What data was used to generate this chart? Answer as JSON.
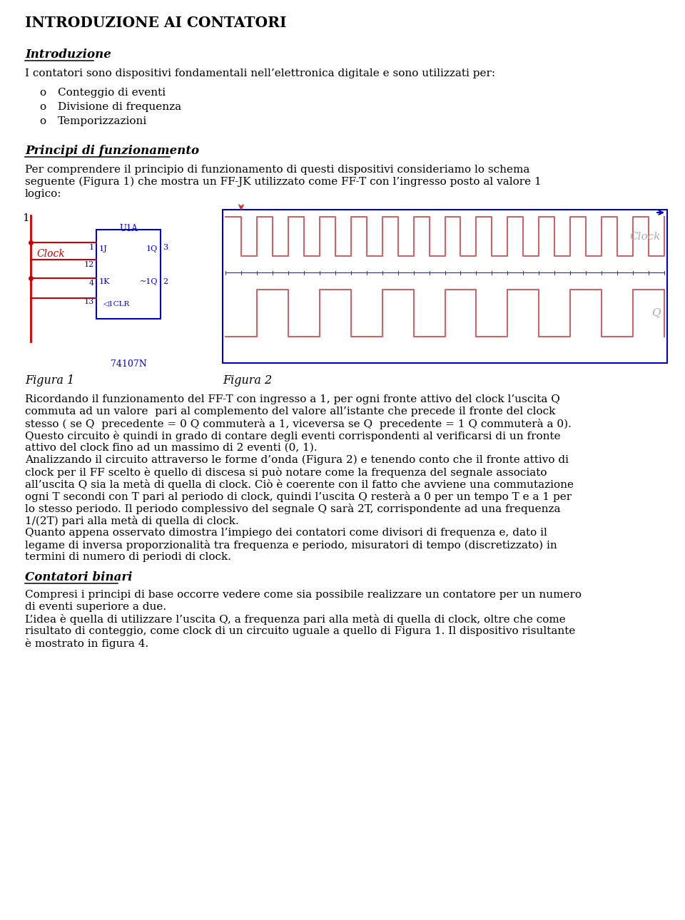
{
  "title": "INTRODUZIONE AI CONTATORI",
  "background_color": "#ffffff",
  "fig_width": 9.6,
  "fig_height": 12.9,
  "intro_heading": "Introduzione",
  "intro_text": "I contatori sono dispositivi fondamentali nell’elettronica digitale e sono utilizzati per:",
  "bullet_items": [
    "Conteggio di eventi",
    "Divisione di frequenza",
    "Temporizzazioni"
  ],
  "principi_heading": "Principi di funzionamento",
  "principi_lines": [
    "Per comprendere il principio di funzionamento di questi dispositivi consideriamo lo schema",
    "seguente (Figura 1) che mostra un FF-JK utilizzato come FF-T con l’ingresso posto al valore 1",
    "logico:"
  ],
  "figura1_caption": "Figura 1",
  "figura2_caption": "Figura 2",
  "body_lines": [
    "Ricordando il funzionamento del FF-T con ingresso a 1, per ogni fronte attivo del clock l’uscita Q",
    "commuta ad un valore  pari al complemento del valore all’istante che precede il fronte del clock",
    "stesso ( se Q  precedente = 0 Q commuterà a 1, viceversa se Q  precedente = 1 Q commuterà a 0).",
    "Questo circuito è quindi in grado di contare degli eventi corrispondenti al verificarsi di un fronte",
    "attivo del clock fino ad un massimo di 2 eventi (0, 1).",
    "Analizzando il circuito attraverso le forme d’onda (Figura 2) e tenendo conto che il fronte attivo di",
    "clock per il FF scelto è quello di discesa si può notare come la frequenza del segnale associato",
    "all’uscita Q sia la metà di quella di clock. Ciò è coerente con il fatto che avviene una commutazione",
    "ogni T secondi con T pari al periodo di clock, quindi l’uscita Q resterà a 0 per un tempo T e a 1 per",
    "lo stesso periodo. Il periodo complessivo del segnale Q sarà 2T, corrispondente ad una frequenza",
    "1/(2T) pari alla metà di quella di clock.",
    "Quanto appena osservato dimostra l’impiego dei contatori come divisori di frequenza e, dato il",
    "legame di inversa proporzionalità tra frequenza e periodo, misuratori di tempo (discretizzato) in",
    "termini di numero di periodi di clock."
  ],
  "contatori_heading": "Contatori binari",
  "contatori_lines": [
    "Compresi i principi di base occorre vedere come sia possibile realizzare un contatore per un numero",
    "di eventi superiore a due.",
    "L’idea è quella di utilizzare l’uscita Q, a frequenza pari alla metà di quella di clock, oltre che come",
    "risultato di conteggio, come clock di un circuito uguale a quello di Figura 1. Il dispositivo risultante",
    "è mostrato in figura 4."
  ],
  "waveform_color": "#cc6666",
  "ic_color": "#0000cc",
  "wire_color": "#cc0000",
  "n_clk_periods": 14
}
